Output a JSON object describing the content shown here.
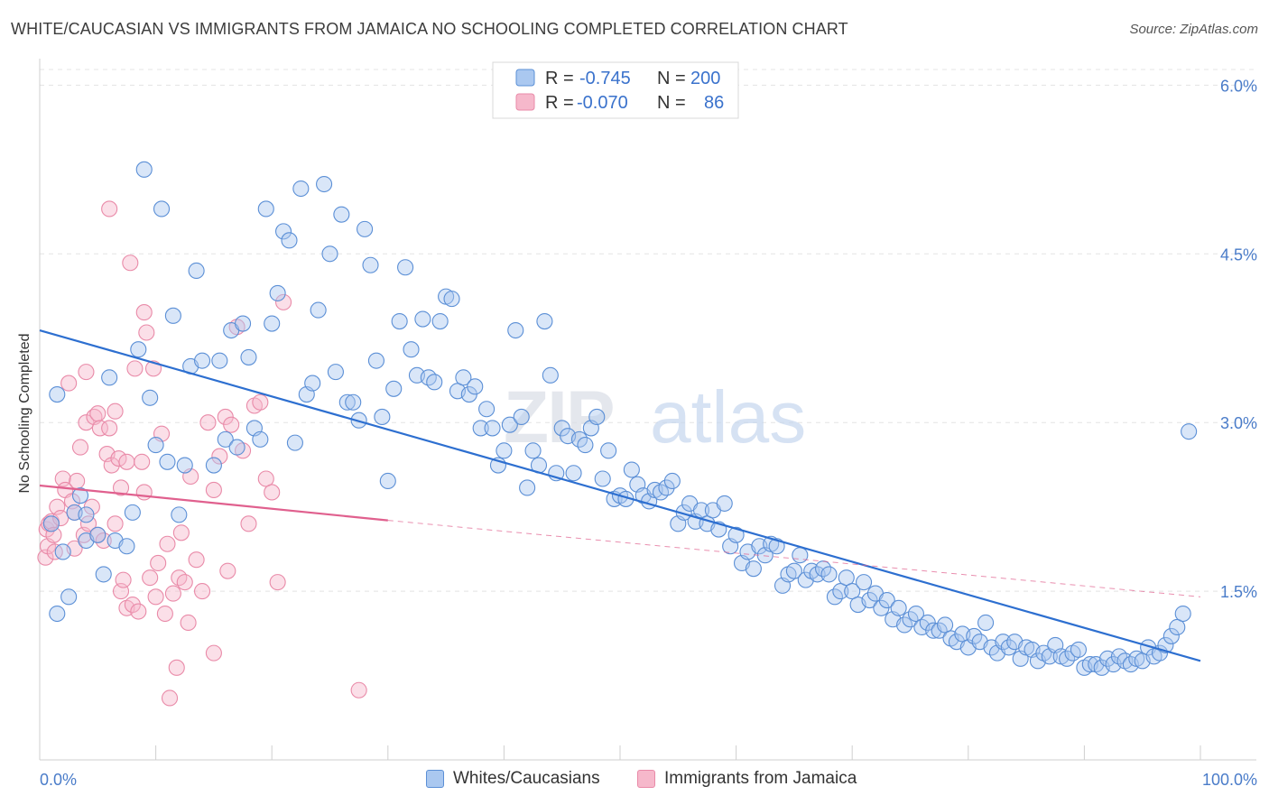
{
  "header": {
    "title": "WHITE/CAUCASIAN VS IMMIGRANTS FROM JAMAICA NO SCHOOLING COMPLETED CORRELATION CHART",
    "source": "Source: ZipAtlas.com"
  },
  "watermark": "ZIPatlas",
  "colors": {
    "blue_fill": "#aac8f0",
    "blue_stroke": "#5b8fd6",
    "blue_line": "#2d6fd0",
    "pink_fill": "#f6b8cb",
    "pink_stroke": "#e98aa8",
    "pink_line": "#e0608e",
    "axis_text": "#4a7cc9"
  },
  "chart_data": {
    "type": "scatter",
    "title": "WHITE/CAUCASIAN VS IMMIGRANTS FROM JAMAICA NO SCHOOLING COMPLETED CORRELATION CHART",
    "xlabel": "",
    "ylabel": "No Schooling Completed",
    "xlim": [
      0,
      100
    ],
    "ylim": [
      0,
      6.3
    ],
    "x_tick_labels": [
      "0.0%",
      "100.0%"
    ],
    "y_ticks": [
      1.5,
      3.0,
      4.5,
      6.0
    ],
    "y_tick_labels": [
      "1.5%",
      "3.0%",
      "4.5%",
      "6.0%"
    ],
    "grid": true,
    "legend": {
      "placement": "top-center",
      "entries": [
        {
          "r_label": "R =",
          "r_value": "-0.745",
          "n_label": "N =",
          "n_value": "200"
        },
        {
          "r_label": "R =",
          "r_value": "-0.070",
          "n_label": "N =",
          "n_value": "86"
        }
      ]
    },
    "series": [
      {
        "name": "Whites/Caucasians",
        "trend": {
          "x": [
            0,
            100
          ],
          "y": [
            3.82,
            0.88
          ],
          "style": "solid"
        },
        "points": [
          [
            1,
            2.1
          ],
          [
            1.5,
            3.25
          ],
          [
            1.5,
            1.3
          ],
          [
            2,
            1.85
          ],
          [
            2.5,
            1.45
          ],
          [
            3,
            2.2
          ],
          [
            3.5,
            2.35
          ],
          [
            4,
            2.18
          ],
          [
            4,
            1.95
          ],
          [
            5,
            2.0
          ],
          [
            5.5,
            1.65
          ],
          [
            6,
            3.4
          ],
          [
            6.5,
            1.95
          ],
          [
            7.5,
            1.9
          ],
          [
            8,
            2.2
          ],
          [
            8.5,
            3.65
          ],
          [
            9,
            5.25
          ],
          [
            9.5,
            3.22
          ],
          [
            10,
            2.8
          ],
          [
            10.5,
            4.9
          ],
          [
            11,
            2.65
          ],
          [
            11.5,
            3.95
          ],
          [
            12,
            2.18
          ],
          [
            12.5,
            2.62
          ],
          [
            13,
            3.5
          ],
          [
            13.5,
            4.35
          ],
          [
            14,
            3.55
          ],
          [
            15,
            2.62
          ],
          [
            15.5,
            3.55
          ],
          [
            16,
            2.85
          ],
          [
            16.5,
            3.82
          ],
          [
            17,
            2.78
          ],
          [
            17.5,
            3.88
          ],
          [
            18,
            3.58
          ],
          [
            18.5,
            2.95
          ],
          [
            19,
            2.85
          ],
          [
            19.5,
            4.9
          ],
          [
            20,
            3.88
          ],
          [
            20.5,
            4.15
          ],
          [
            21,
            4.7
          ],
          [
            21.5,
            4.62
          ],
          [
            22,
            2.82
          ],
          [
            22.5,
            5.08
          ],
          [
            23,
            3.25
          ],
          [
            23.5,
            3.35
          ],
          [
            24,
            4.0
          ],
          [
            24.5,
            5.12
          ],
          [
            25,
            4.5
          ],
          [
            25.5,
            3.45
          ],
          [
            26,
            4.85
          ],
          [
            26.5,
            3.18
          ],
          [
            27,
            3.18
          ],
          [
            27.5,
            3.02
          ],
          [
            28,
            4.72
          ],
          [
            28.5,
            4.4
          ],
          [
            29,
            3.55
          ],
          [
            29.5,
            3.05
          ],
          [
            30,
            2.48
          ],
          [
            30.5,
            3.3
          ],
          [
            31,
            3.9
          ],
          [
            31.5,
            4.38
          ],
          [
            32,
            3.65
          ],
          [
            32.5,
            3.42
          ],
          [
            33,
            3.92
          ],
          [
            33.5,
            3.4
          ],
          [
            34,
            3.36
          ],
          [
            34.5,
            3.9
          ],
          [
            35,
            4.12
          ],
          [
            35.5,
            4.1
          ],
          [
            36,
            3.28
          ],
          [
            36.5,
            3.4
          ],
          [
            37,
            3.25
          ],
          [
            37.5,
            3.32
          ],
          [
            38,
            2.95
          ],
          [
            38.5,
            3.12
          ],
          [
            39,
            2.95
          ],
          [
            39.5,
            2.62
          ],
          [
            40,
            2.75
          ],
          [
            40.5,
            2.98
          ],
          [
            41,
            3.82
          ],
          [
            41.5,
            3.05
          ],
          [
            42,
            2.42
          ],
          [
            42.5,
            2.75
          ],
          [
            43,
            2.62
          ],
          [
            43.5,
            3.9
          ],
          [
            44,
            3.42
          ],
          [
            44.5,
            2.55
          ],
          [
            45,
            2.95
          ],
          [
            45.5,
            2.88
          ],
          [
            46,
            2.55
          ],
          [
            46.5,
            2.85
          ],
          [
            47,
            2.8
          ],
          [
            47.5,
            2.95
          ],
          [
            48,
            3.05
          ],
          [
            48.5,
            2.5
          ],
          [
            49,
            2.75
          ],
          [
            49.5,
            2.32
          ],
          [
            50,
            2.35
          ],
          [
            50.5,
            2.32
          ],
          [
            51,
            2.58
          ],
          [
            51.5,
            2.45
          ],
          [
            52,
            2.35
          ],
          [
            52.5,
            2.3
          ],
          [
            53,
            2.4
          ],
          [
            53.5,
            2.38
          ],
          [
            54,
            2.42
          ],
          [
            54.5,
            2.48
          ],
          [
            55,
            2.1
          ],
          [
            55.5,
            2.2
          ],
          [
            56,
            2.28
          ],
          [
            56.5,
            2.12
          ],
          [
            57,
            2.22
          ],
          [
            57.5,
            2.1
          ],
          [
            58,
            2.22
          ],
          [
            58.5,
            2.05
          ],
          [
            59,
            2.28
          ],
          [
            59.5,
            1.9
          ],
          [
            60,
            2.0
          ],
          [
            60.5,
            1.75
          ],
          [
            61,
            1.85
          ],
          [
            61.5,
            1.7
          ],
          [
            62,
            1.9
          ],
          [
            62.5,
            1.82
          ],
          [
            63,
            1.92
          ],
          [
            63.5,
            1.9
          ],
          [
            64,
            1.55
          ],
          [
            64.5,
            1.65
          ],
          [
            65,
            1.68
          ],
          [
            65.5,
            1.82
          ],
          [
            66,
            1.6
          ],
          [
            66.5,
            1.68
          ],
          [
            67,
            1.65
          ],
          [
            67.5,
            1.7
          ],
          [
            68,
            1.65
          ],
          [
            68.5,
            1.45
          ],
          [
            69,
            1.5
          ],
          [
            69.5,
            1.62
          ],
          [
            70,
            1.5
          ],
          [
            70.5,
            1.38
          ],
          [
            71,
            1.58
          ],
          [
            71.5,
            1.42
          ],
          [
            72,
            1.48
          ],
          [
            72.5,
            1.35
          ],
          [
            73,
            1.42
          ],
          [
            73.5,
            1.25
          ],
          [
            74,
            1.35
          ],
          [
            74.5,
            1.2
          ],
          [
            75,
            1.25
          ],
          [
            75.5,
            1.3
          ],
          [
            76,
            1.18
          ],
          [
            76.5,
            1.22
          ],
          [
            77,
            1.15
          ],
          [
            77.5,
            1.15
          ],
          [
            78,
            1.2
          ],
          [
            78.5,
            1.08
          ],
          [
            79,
            1.05
          ],
          [
            79.5,
            1.12
          ],
          [
            80,
            1.0
          ],
          [
            80.5,
            1.1
          ],
          [
            81,
            1.05
          ],
          [
            81.5,
            1.22
          ],
          [
            82,
            1.0
          ],
          [
            82.5,
            0.95
          ],
          [
            83,
            1.05
          ],
          [
            83.5,
            1.0
          ],
          [
            84,
            1.05
          ],
          [
            84.5,
            0.9
          ],
          [
            85,
            1.0
          ],
          [
            85.5,
            0.98
          ],
          [
            86,
            0.88
          ],
          [
            86.5,
            0.95
          ],
          [
            87,
            0.92
          ],
          [
            87.5,
            1.02
          ],
          [
            88,
            0.92
          ],
          [
            88.5,
            0.9
          ],
          [
            89,
            0.95
          ],
          [
            89.5,
            0.98
          ],
          [
            90,
            0.82
          ],
          [
            90.5,
            0.85
          ],
          [
            91,
            0.85
          ],
          [
            91.5,
            0.82
          ],
          [
            92,
            0.9
          ],
          [
            92.5,
            0.85
          ],
          [
            93,
            0.92
          ],
          [
            93.5,
            0.88
          ],
          [
            94,
            0.85
          ],
          [
            94.5,
            0.9
          ],
          [
            95,
            0.88
          ],
          [
            95.5,
            1.0
          ],
          [
            96,
            0.92
          ],
          [
            96.5,
            0.95
          ],
          [
            97,
            1.02
          ],
          [
            97.5,
            1.1
          ],
          [
            98,
            1.18
          ],
          [
            98.5,
            1.3
          ],
          [
            99,
            2.92
          ]
        ]
      },
      {
        "name": "Immigrants from Jamaica",
        "trend": {
          "x": [
            0,
            30,
            100
          ],
          "y": [
            2.44,
            2.13,
            1.45
          ],
          "style": "solid-then-dashed"
        },
        "points": [
          [
            0.5,
            1.8
          ],
          [
            0.6,
            2.05
          ],
          [
            0.7,
            1.9
          ],
          [
            0.8,
            2.1
          ],
          [
            1,
            2.12
          ],
          [
            1.2,
            2.0
          ],
          [
            1.3,
            1.85
          ],
          [
            1.5,
            2.25
          ],
          [
            1.8,
            2.15
          ],
          [
            2,
            2.5
          ],
          [
            2.2,
            2.4
          ],
          [
            2.5,
            3.35
          ],
          [
            2.8,
            2.3
          ],
          [
            3,
            1.88
          ],
          [
            3,
            2.2
          ],
          [
            3.2,
            2.48
          ],
          [
            3.5,
            2.78
          ],
          [
            3.8,
            2.0
          ],
          [
            4,
            3.0
          ],
          [
            4,
            3.45
          ],
          [
            4.2,
            2.1
          ],
          [
            4.5,
            2.25
          ],
          [
            4.7,
            3.05
          ],
          [
            5,
            3.08
          ],
          [
            5,
            2.0
          ],
          [
            5.2,
            2.95
          ],
          [
            5.5,
            1.95
          ],
          [
            5.8,
            2.72
          ],
          [
            6,
            2.95
          ],
          [
            6,
            4.9
          ],
          [
            6.2,
            2.62
          ],
          [
            6.5,
            3.1
          ],
          [
            6.5,
            2.1
          ],
          [
            6.8,
            2.68
          ],
          [
            7,
            2.42
          ],
          [
            7,
            1.5
          ],
          [
            7.2,
            1.6
          ],
          [
            7.5,
            2.65
          ],
          [
            7.5,
            1.35
          ],
          [
            7.8,
            4.42
          ],
          [
            8,
            1.38
          ],
          [
            8.2,
            3.48
          ],
          [
            8.5,
            1.32
          ],
          [
            8.8,
            2.65
          ],
          [
            9,
            3.98
          ],
          [
            9,
            2.38
          ],
          [
            9.2,
            3.8
          ],
          [
            9.5,
            1.62
          ],
          [
            9.8,
            3.48
          ],
          [
            10,
            1.45
          ],
          [
            10.2,
            1.75
          ],
          [
            10.5,
            2.9
          ],
          [
            10.8,
            1.3
          ],
          [
            11,
            1.92
          ],
          [
            11.2,
            0.55
          ],
          [
            11.5,
            1.48
          ],
          [
            11.8,
            0.82
          ],
          [
            12,
            1.62
          ],
          [
            12.2,
            2.02
          ],
          [
            12.5,
            1.58
          ],
          [
            12.8,
            1.22
          ],
          [
            13,
            2.52
          ],
          [
            13.5,
            1.78
          ],
          [
            14,
            1.5
          ],
          [
            14.5,
            3.0
          ],
          [
            15,
            2.4
          ],
          [
            15,
            0.95
          ],
          [
            15.5,
            2.7
          ],
          [
            16,
            3.05
          ],
          [
            16.2,
            1.68
          ],
          [
            16.5,
            2.98
          ],
          [
            17,
            3.85
          ],
          [
            17.5,
            2.75
          ],
          [
            18,
            2.1
          ],
          [
            18.5,
            3.15
          ],
          [
            19,
            3.18
          ],
          [
            19.5,
            2.5
          ],
          [
            20,
            2.38
          ],
          [
            20.5,
            1.58
          ],
          [
            21,
            4.07
          ],
          [
            27.5,
            0.62
          ]
        ]
      }
    ]
  },
  "bottom_legend": [
    {
      "label": "Whites/Caucasians"
    },
    {
      "label": "Immigrants from Jamaica"
    }
  ]
}
